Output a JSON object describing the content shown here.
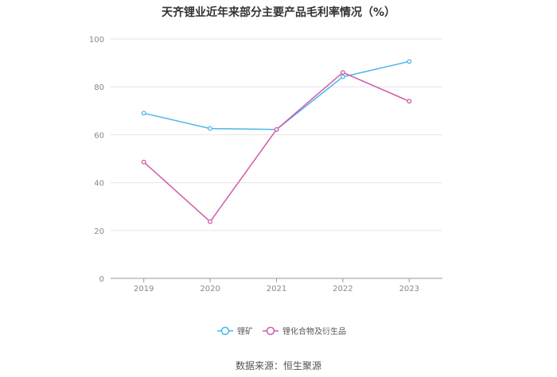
{
  "chart_data": {
    "type": "line",
    "title": "天齐锂业近年来部分主要产品毛利率情况（%）",
    "xlabel": "",
    "ylabel": "",
    "categories": [
      "2019",
      "2020",
      "2021",
      "2022",
      "2023"
    ],
    "ylim": [
      0,
      100
    ],
    "yticks": [
      "0",
      "20",
      "40",
      "60",
      "80",
      "100"
    ],
    "grid": true,
    "legend_position": "bottom",
    "series": [
      {
        "name": "锂矿",
        "color": "#4bb6ea",
        "values": [
          69.0,
          62.6,
          62.2,
          84.2,
          90.6
        ]
      },
      {
        "name": "锂化合物及衍生品",
        "color": "#d05aab",
        "values": [
          48.6,
          23.7,
          62.2,
          86.0,
          74.0
        ]
      }
    ]
  },
  "source": "数据来源：恒生聚源"
}
